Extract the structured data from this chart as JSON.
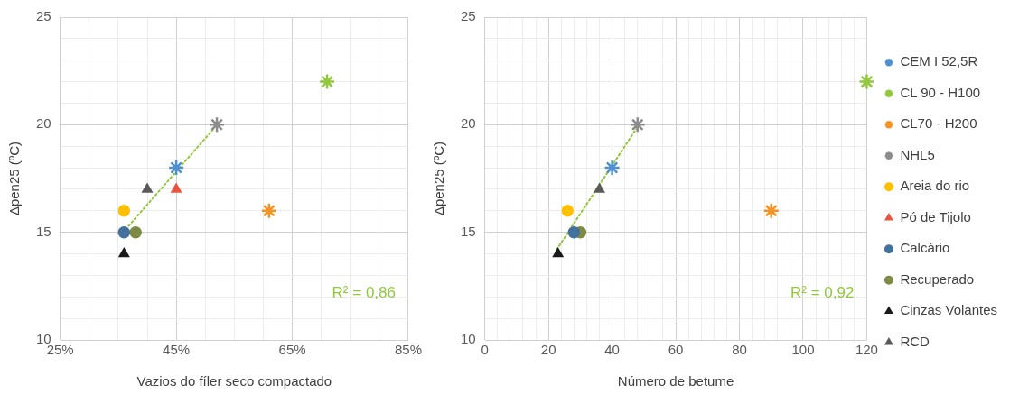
{
  "chart_data": [
    {
      "type": "scatter",
      "xlabel": "Vazios do fíler seco compactado",
      "ylabel": "Δpen25 (ºC)",
      "x": [
        45,
        71,
        61,
        52,
        36,
        45,
        36,
        38,
        36,
        40
      ],
      "xlim": [
        25,
        85
      ],
      "xticks": [
        {
          "value": 25,
          "label": "25%"
        },
        {
          "value": 30,
          "label": null
        },
        {
          "value": 35,
          "label": null
        },
        {
          "value": 40,
          "label": null
        },
        {
          "value": 45,
          "label": "45%"
        },
        {
          "value": 50,
          "label": null
        },
        {
          "value": 55,
          "label": null
        },
        {
          "value": 60,
          "label": null
        },
        {
          "value": 65,
          "label": "65%"
        },
        {
          "value": 70,
          "label": null
        },
        {
          "value": 75,
          "label": null
        },
        {
          "value": 80,
          "label": null
        },
        {
          "value": 85,
          "label": "85%"
        }
      ],
      "ylim": [
        10,
        25
      ],
      "yticks": [
        10,
        {
          "value": 11,
          "label": null
        },
        {
          "value": 12,
          "label": null
        },
        {
          "value": 13,
          "label": null
        },
        {
          "value": 14,
          "label": null
        },
        15,
        {
          "value": 16,
          "label": null
        },
        {
          "value": 17,
          "label": null
        },
        {
          "value": 18,
          "label": null
        },
        {
          "value": 19,
          "label": null
        },
        20,
        {
          "value": 21,
          "label": null
        },
        {
          "value": 22,
          "label": null
        },
        {
          "value": 23,
          "label": null
        },
        {
          "value": 24,
          "label": null
        },
        25
      ],
      "grid": true,
      "legend": false,
      "series": [
        {
          "marker": "cross",
          "color": "#4f8fcf",
          "values": [
            18,
            null,
            null,
            null,
            null,
            null,
            null,
            null,
            null,
            null
          ]
        },
        {
          "marker": "cross",
          "color": "#92c83e",
          "values": [
            null,
            22,
            null,
            null,
            null,
            null,
            null,
            null,
            null,
            null
          ]
        },
        {
          "marker": "cross",
          "color": "#f39325",
          "values": [
            null,
            null,
            16,
            null,
            null,
            null,
            null,
            null,
            null,
            null
          ]
        },
        {
          "marker": "cross",
          "color": "#8c8c8c",
          "values": [
            null,
            null,
            null,
            20,
            null,
            null,
            null,
            null,
            null,
            null
          ]
        },
        {
          "marker": "circle",
          "color": "#ffc000",
          "values": [
            null,
            null,
            null,
            null,
            16,
            null,
            null,
            null,
            null,
            null
          ]
        },
        {
          "marker": "triangle",
          "color": "#e8553f",
          "values": [
            null,
            null,
            null,
            null,
            null,
            17,
            null,
            null,
            null,
            null
          ]
        },
        {
          "marker": "circle",
          "color": "#41719c",
          "values": [
            null,
            null,
            null,
            null,
            null,
            null,
            15,
            null,
            null,
            null
          ]
        },
        {
          "marker": "circle",
          "color": "#7c8a43",
          "values": [
            null,
            null,
            null,
            null,
            null,
            null,
            null,
            15,
            null,
            null
          ]
        },
        {
          "marker": "triangle",
          "color": "#1a1a1a",
          "values": [
            null,
            null,
            null,
            null,
            null,
            null,
            null,
            null,
            14,
            null
          ]
        },
        {
          "marker": "triangle",
          "color": "#5a5a5a",
          "values": [
            null,
            null,
            null,
            null,
            null,
            null,
            null,
            null,
            null,
            17
          ]
        },
        {
          "type": "line",
          "line_style": "dotted",
          "color": "#92c83e",
          "x": [
            36.8,
            51.4
          ],
          "values": [
            15.3,
            19.8
          ]
        }
      ],
      "annotations": [
        "R² = 0,86"
      ]
    },
    {
      "type": "scatter",
      "xlabel": "Número de betume",
      "ylabel": "Δpen25 (ºC)",
      "x": [
        40,
        120,
        90,
        48,
        26,
        null,
        28,
        30,
        23,
        36
      ],
      "xlim": [
        0,
        120
      ],
      "xticks": [
        0,
        {
          "value": 4,
          "label": null
        },
        {
          "value": 8,
          "label": null
        },
        {
          "value": 12,
          "label": null
        },
        {
          "value": 16,
          "label": null
        },
        20,
        {
          "value": 24,
          "label": null
        },
        {
          "value": 28,
          "label": null
        },
        {
          "value": 32,
          "label": null
        },
        {
          "value": 36,
          "label": null
        },
        40,
        {
          "value": 44,
          "label": null
        },
        {
          "value": 48,
          "label": null
        },
        {
          "value": 52,
          "label": null
        },
        {
          "value": 56,
          "label": null
        },
        60,
        {
          "value": 64,
          "label": null
        },
        {
          "value": 68,
          "label": null
        },
        {
          "value": 72,
          "label": null
        },
        {
          "value": 76,
          "label": null
        },
        80,
        {
          "value": 84,
          "label": null
        },
        {
          "value": 88,
          "label": null
        },
        {
          "value": 92,
          "label": null
        },
        {
          "value": 96,
          "label": null
        },
        100,
        {
          "value": 104,
          "label": null
        },
        {
          "value": 108,
          "label": null
        },
        {
          "value": 112,
          "label": null
        },
        {
          "value": 116,
          "label": null
        },
        120
      ],
      "ylim": [
        10,
        25
      ],
      "yticks": [
        10,
        {
          "value": 11,
          "label": null
        },
        {
          "value": 12,
          "label": null
        },
        {
          "value": 13,
          "label": null
        },
        {
          "value": 14,
          "label": null
        },
        15,
        {
          "value": 16,
          "label": null
        },
        {
          "value": 17,
          "label": null
        },
        {
          "value": 18,
          "label": null
        },
        {
          "value": 19,
          "label": null
        },
        20,
        {
          "value": 21,
          "label": null
        },
        {
          "value": 22,
          "label": null
        },
        {
          "value": 23,
          "label": null
        },
        {
          "value": 24,
          "label": null
        },
        25
      ],
      "grid": true,
      "legend": "right",
      "series": [
        {
          "name": "CEM I 52,5R",
          "marker": "cross",
          "color": "#4f8fcf",
          "values": [
            18,
            null,
            null,
            null,
            null,
            null,
            null,
            null,
            null,
            null
          ]
        },
        {
          "name": "CL 90 - H100",
          "marker": "cross",
          "color": "#92c83e",
          "values": [
            null,
            22,
            null,
            null,
            null,
            null,
            null,
            null,
            null,
            null
          ]
        },
        {
          "name": "CL70 - H200",
          "marker": "cross",
          "color": "#f39325",
          "values": [
            null,
            null,
            16,
            null,
            null,
            null,
            null,
            null,
            null,
            null
          ]
        },
        {
          "name": "NHL5",
          "marker": "cross",
          "color": "#8c8c8c",
          "values": [
            null,
            null,
            null,
            20,
            null,
            null,
            null,
            null,
            null,
            null
          ]
        },
        {
          "name": "Areia do rio",
          "marker": "circle",
          "color": "#ffc000",
          "values": [
            null,
            null,
            null,
            null,
            16,
            null,
            null,
            null,
            null,
            null
          ]
        },
        {
          "name": "Pó de Tijolo",
          "marker": "triangle",
          "color": "#e8553f",
          "values": [
            null,
            null,
            null,
            null,
            null,
            null,
            null,
            null,
            null,
            null
          ]
        },
        {
          "name": "Calcário",
          "marker": "circle",
          "color": "#41719c",
          "values": [
            null,
            null,
            null,
            null,
            null,
            null,
            15,
            null,
            null,
            null
          ]
        },
        {
          "name": "Recuperado",
          "marker": "circle",
          "color": "#7c8a43",
          "values": [
            null,
            null,
            null,
            null,
            null,
            null,
            null,
            15,
            null,
            null
          ]
        },
        {
          "name": "Cinzas Volantes",
          "marker": "triangle",
          "color": "#1a1a1a",
          "values": [
            null,
            null,
            null,
            null,
            null,
            null,
            null,
            null,
            14,
            null
          ]
        },
        {
          "name": "RCD",
          "marker": "triangle",
          "color": "#5a5a5a",
          "values": [
            null,
            null,
            null,
            null,
            null,
            null,
            null,
            null,
            null,
            17
          ]
        },
        {
          "type": "line",
          "line_style": "dotted",
          "color": "#92c83e",
          "x": [
            22.6,
            48
          ],
          "values": [
            14.2,
            19.9
          ]
        }
      ],
      "annotations": [
        "R² = 0,92"
      ]
    }
  ]
}
